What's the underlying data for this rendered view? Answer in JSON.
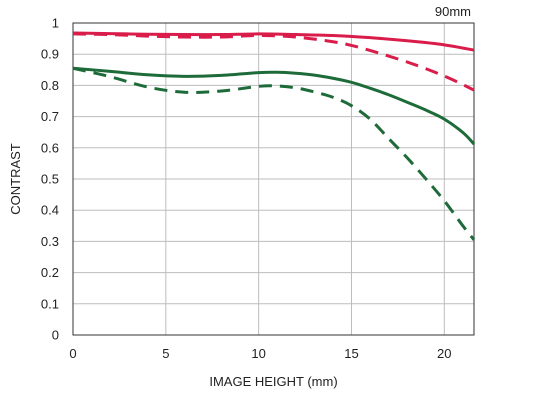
{
  "chart_data": {
    "type": "line",
    "title": "",
    "corner_label": "90mm",
    "xlabel": "IMAGE HEIGHT (mm)",
    "ylabel": "CONTRAST",
    "xlim": [
      0,
      21.6
    ],
    "ylim": [
      0,
      1
    ],
    "xticks": [
      0,
      5,
      10,
      15,
      20
    ],
    "yticks": [
      0,
      0.1,
      0.2,
      0.3,
      0.4,
      0.5,
      0.6,
      0.7,
      0.8,
      0.9,
      1
    ],
    "yticklabels": [
      "0",
      "0.1",
      "0.2",
      "0.3",
      "0.4",
      "0.5",
      "0.6",
      "0.7",
      "0.8",
      "0.9",
      "1"
    ],
    "xticklabels": [
      "0",
      "5",
      "10",
      "15",
      "20"
    ],
    "grid": true,
    "legend": "none",
    "series": [
      {
        "color": "#d91c4a",
        "dash": "solid",
        "x": [
          0,
          2,
          4,
          6,
          8,
          10,
          12,
          14,
          16,
          18,
          20,
          21.6
        ],
        "y": [
          0.968,
          0.966,
          0.964,
          0.963,
          0.963,
          0.965,
          0.963,
          0.96,
          0.953,
          0.943,
          0.93,
          0.913
        ]
      },
      {
        "color": "#d91c4a",
        "dash": "dashed",
        "x": [
          0,
          2,
          4,
          6,
          8,
          10,
          12,
          14,
          15,
          16,
          18,
          20,
          21.6
        ],
        "y": [
          0.965,
          0.963,
          0.958,
          0.955,
          0.955,
          0.96,
          0.955,
          0.94,
          0.928,
          0.912,
          0.875,
          0.83,
          0.785
        ]
      },
      {
        "color": "#1e6b3a",
        "dash": "solid",
        "x": [
          0,
          2,
          4,
          6,
          8,
          10,
          11,
          12,
          13,
          14,
          15,
          16,
          17,
          18,
          19,
          20,
          21,
          21.6
        ],
        "y": [
          0.855,
          0.845,
          0.834,
          0.829,
          0.832,
          0.841,
          0.842,
          0.839,
          0.833,
          0.823,
          0.81,
          0.791,
          0.77,
          0.746,
          0.721,
          0.692,
          0.649,
          0.612
        ]
      },
      {
        "color": "#1e6b3a",
        "dash": "dashed",
        "x": [
          0,
          2,
          4,
          6,
          8,
          10,
          11,
          12,
          13,
          14,
          15,
          16,
          17,
          18,
          19,
          20,
          21,
          21.6
        ],
        "y": [
          0.855,
          0.828,
          0.795,
          0.778,
          0.782,
          0.797,
          0.798,
          0.792,
          0.779,
          0.762,
          0.735,
          0.692,
          0.63,
          0.568,
          0.501,
          0.43,
          0.35,
          0.305
        ]
      }
    ]
  }
}
